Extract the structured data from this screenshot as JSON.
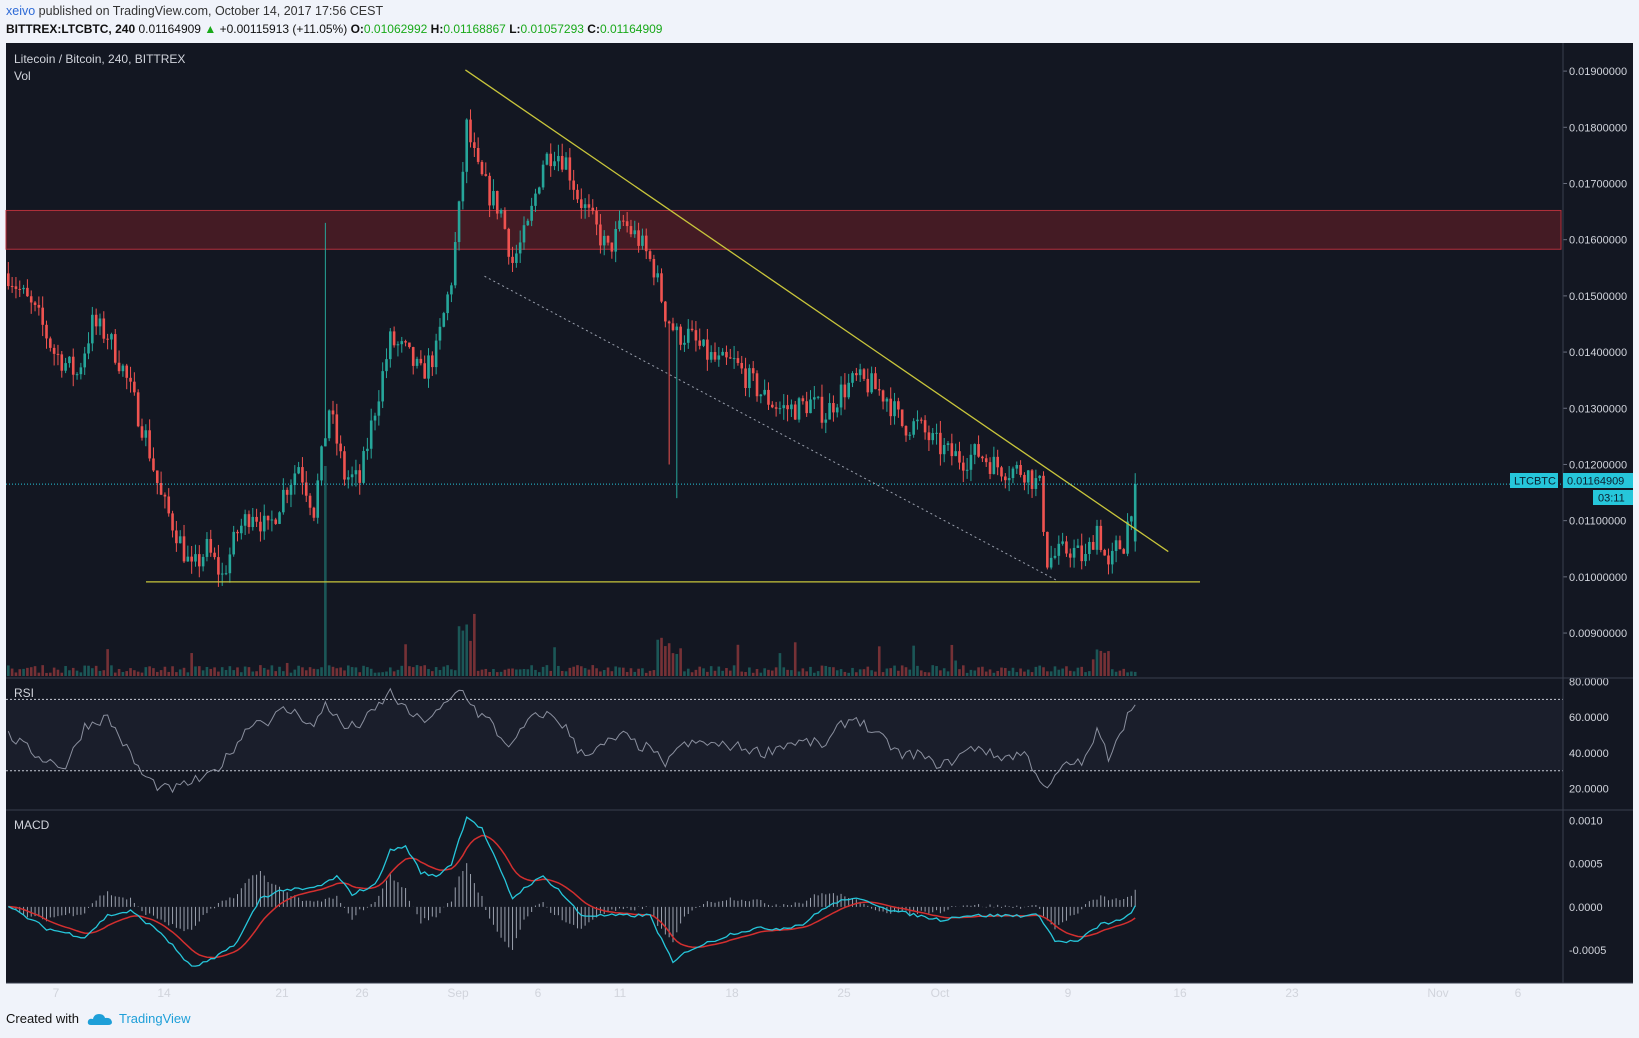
{
  "header": {
    "user": "xeivo",
    "published_text": "published on TradingView.com, October 14, 2017 17:56 CEST",
    "symbol": "BITTREX:LTCBTC, 240",
    "last": "0.01164909",
    "change": "+0.00115913 (+11.05%)",
    "o_label": "O:",
    "o_value": "0.01062992",
    "h_label": "H:",
    "h_value": "0.01168867",
    "l_label": "L:",
    "l_value": "0.01057293",
    "c_label": "C:",
    "c_value": "0.01164909"
  },
  "panes": {
    "main_title": "Litecoin / Bitcoin, 240, BITTREX",
    "vol_label": "Vol",
    "rsi_label": "RSI",
    "macd_label": "MACD"
  },
  "price_tag": {
    "symbol": "LTCBTC",
    "price": "0.01164909",
    "countdown": "03:11"
  },
  "footer": {
    "created_with": "Created with",
    "brand": "TradingView"
  },
  "colors": {
    "background": "#131722",
    "up": "#26a69a",
    "down": "#ef5350",
    "trendline": "#c8c53b",
    "zone": "#4a1c25",
    "rsi": "#8a8f9e",
    "macd_line": "#26c6da",
    "signal_line": "#d32f2f",
    "price_tag": "#26c6da"
  },
  "chart_data": [
    {
      "type": "candlestick",
      "title": "Litecoin / Bitcoin, 240, BITTREX",
      "x_tick_labels": [
        "7",
        "14",
        "21",
        "26",
        "Sep",
        "6",
        "11",
        "18",
        "25",
        "Oct",
        "9",
        "16",
        "23",
        "Nov",
        "6"
      ],
      "y_tick_labels": [
        "0.01900000",
        "0.01800000",
        "0.01700000",
        "0.01600000",
        "0.01500000",
        "0.01400000",
        "0.01300000",
        "0.01200000",
        "0.01100000",
        "0.01000000",
        "0.00900000"
      ],
      "ylim": [
        0.0082,
        0.0195
      ],
      "close_anchors": [
        [
          0,
          0.0154
        ],
        [
          3,
          0.0151
        ],
        [
          8,
          0.0146
        ],
        [
          12,
          0.014
        ],
        [
          18,
          0.0136
        ],
        [
          22,
          0.0145
        ],
        [
          26,
          0.0143
        ],
        [
          30,
          0.0137
        ],
        [
          36,
          0.0125
        ],
        [
          40,
          0.0114
        ],
        [
          44,
          0.0108
        ],
        [
          48,
          0.0101
        ],
        [
          52,
          0.0105
        ],
        [
          56,
          0.01
        ],
        [
          60,
          0.0108
        ],
        [
          64,
          0.0112
        ],
        [
          68,
          0.0108
        ],
        [
          72,
          0.0115
        ],
        [
          76,
          0.012
        ],
        [
          80,
          0.0112
        ],
        [
          84,
          0.013
        ],
        [
          88,
          0.0118
        ],
        [
          92,
          0.0117
        ],
        [
          96,
          0.013
        ],
        [
          100,
          0.0142
        ],
        [
          104,
          0.014
        ],
        [
          108,
          0.0136
        ],
        [
          112,
          0.014
        ],
        [
          116,
          0.0153
        ],
        [
          118,
          0.0165
        ],
        [
          120,
          0.018
        ],
        [
          123,
          0.0172
        ],
        [
          126,
          0.0168
        ],
        [
          129,
          0.0165
        ],
        [
          132,
          0.0156
        ],
        [
          136,
          0.0162
        ],
        [
          140,
          0.0174
        ],
        [
          143,
          0.0176
        ],
        [
          146,
          0.0174
        ],
        [
          149,
          0.0168
        ],
        [
          153,
          0.0163
        ],
        [
          157,
          0.0158
        ],
        [
          161,
          0.0163
        ],
        [
          165,
          0.016
        ],
        [
          169,
          0.0155
        ],
        [
          172,
          0.0147
        ],
        [
          175,
          0.0143
        ],
        [
          178,
          0.0143
        ],
        [
          182,
          0.014
        ],
        [
          186,
          0.0138
        ],
        [
          190,
          0.0138
        ],
        [
          194,
          0.0135
        ],
        [
          198,
          0.0132
        ],
        [
          202,
          0.013
        ],
        [
          206,
          0.013
        ],
        [
          210,
          0.0131
        ],
        [
          214,
          0.0129
        ],
        [
          218,
          0.0133
        ],
        [
          222,
          0.0135
        ],
        [
          226,
          0.0134
        ],
        [
          230,
          0.0132
        ],
        [
          234,
          0.0127
        ],
        [
          238,
          0.0127
        ],
        [
          242,
          0.0124
        ],
        [
          246,
          0.0122
        ],
        [
          250,
          0.0121
        ],
        [
          254,
          0.0122
        ],
        [
          258,
          0.012
        ],
        [
          262,
          0.0119
        ],
        [
          266,
          0.0119
        ],
        [
          270,
          0.0116
        ],
        [
          272,
          0.0103
        ],
        [
          275,
          0.0104
        ],
        [
          278,
          0.0105
        ],
        [
          282,
          0.0103
        ],
        [
          285,
          0.0109
        ],
        [
          288,
          0.0101
        ],
        [
          290,
          0.0105
        ],
        [
          292,
          0.0106
        ],
        [
          295,
          0.01165
        ]
      ],
      "spikes": [
        {
          "bar": 83,
          "high": 0.0163
        },
        {
          "bar": 173,
          "low": 0.012
        },
        {
          "bar": 175,
          "low": 0.0114
        }
      ],
      "annotations": {
        "resistance_zone": [
          0.01583,
          0.01652
        ],
        "support_line": 0.00991,
        "current_price": 0.01164909,
        "descending_trendline": [
          [
            0.01902,
            120
          ],
          [
            0.01045,
            304
          ]
        ],
        "lower_channel_dotted": [
          [
            0.01535,
            125
          ],
          [
            0.00993,
            275
          ]
        ]
      }
    },
    {
      "type": "line",
      "title": "RSI",
      "y_tick_labels": [
        "80.0000",
        "60.0000",
        "40.0000",
        "20.0000"
      ],
      "ylim": [
        8,
        82
      ],
      "bands": [
        70,
        30
      ],
      "anchors": [
        [
          0,
          50
        ],
        [
          8,
          38
        ],
        [
          15,
          32
        ],
        [
          20,
          55
        ],
        [
          26,
          60
        ],
        [
          30,
          46
        ],
        [
          35,
          28
        ],
        [
          40,
          20
        ],
        [
          44,
          20
        ],
        [
          48,
          24
        ],
        [
          52,
          26
        ],
        [
          56,
          34
        ],
        [
          60,
          46
        ],
        [
          64,
          58
        ],
        [
          68,
          58
        ],
        [
          72,
          64
        ],
        [
          76,
          62
        ],
        [
          80,
          54
        ],
        [
          83,
          68
        ],
        [
          88,
          54
        ],
        [
          92,
          56
        ],
        [
          96,
          64
        ],
        [
          100,
          74
        ],
        [
          104,
          64
        ],
        [
          108,
          58
        ],
        [
          112,
          62
        ],
        [
          116,
          70
        ],
        [
          118,
          76
        ],
        [
          120,
          72
        ],
        [
          123,
          62
        ],
        [
          126,
          58
        ],
        [
          129,
          48
        ],
        [
          132,
          44
        ],
        [
          136,
          58
        ],
        [
          140,
          62
        ],
        [
          143,
          60
        ],
        [
          146,
          54
        ],
        [
          149,
          42
        ],
        [
          153,
          40
        ],
        [
          157,
          46
        ],
        [
          161,
          50
        ],
        [
          165,
          44
        ],
        [
          169,
          42
        ],
        [
          172,
          30
        ],
        [
          174,
          42
        ],
        [
          177,
          44
        ],
        [
          182,
          46
        ],
        [
          186,
          44
        ],
        [
          190,
          44
        ],
        [
          194,
          42
        ],
        [
          198,
          40
        ],
        [
          202,
          44
        ],
        [
          206,
          46
        ],
        [
          210,
          46
        ],
        [
          214,
          44
        ],
        [
          218,
          56
        ],
        [
          222,
          60
        ],
        [
          226,
          52
        ],
        [
          230,
          46
        ],
        [
          234,
          38
        ],
        [
          238,
          40
        ],
        [
          242,
          34
        ],
        [
          246,
          34
        ],
        [
          250,
          40
        ],
        [
          254,
          44
        ],
        [
          258,
          38
        ],
        [
          262,
          38
        ],
        [
          266,
          40
        ],
        [
          270,
          26
        ],
        [
          272,
          18
        ],
        [
          275,
          30
        ],
        [
          278,
          34
        ],
        [
          282,
          36
        ],
        [
          285,
          52
        ],
        [
          288,
          38
        ],
        [
          290,
          48
        ],
        [
          292,
          56
        ],
        [
          295,
          70
        ]
      ]
    },
    {
      "type": "line",
      "title": "MACD",
      "y_tick_labels": [
        "0.0010",
        "0.0005",
        "0.0000",
        "-0.0005"
      ],
      "ylim": [
        -0.00088,
        0.00112
      ],
      "series": [
        {
          "name": "MACD",
          "anchors": [
            [
              0,
              0
            ],
            [
              10,
              -0.00025
            ],
            [
              20,
              -0.00035
            ],
            [
              26,
              -0.0001
            ],
            [
              32,
              -5e-05
            ],
            [
              40,
              -0.0003
            ],
            [
              48,
              -0.0007
            ],
            [
              54,
              -0.0006
            ],
            [
              60,
              -0.0004
            ],
            [
              66,
              0.0001
            ],
            [
              72,
              0.0002
            ],
            [
              78,
              0.0002
            ],
            [
              82,
              0.00025
            ],
            [
              86,
              0.00035
            ],
            [
              90,
              0.00015
            ],
            [
              96,
              0.00025
            ],
            [
              100,
              0.00065
            ],
            [
              104,
              0.0007
            ],
            [
              108,
              0.0004
            ],
            [
              112,
              0.00035
            ],
            [
              116,
              0.0005
            ],
            [
              120,
              0.00105
            ],
            [
              124,
              0.0009
            ],
            [
              128,
              0.0005
            ],
            [
              132,
              0.0001
            ],
            [
              136,
              0.00025
            ],
            [
              140,
              0.00035
            ],
            [
              144,
              0.0002
            ],
            [
              150,
              -0.0001
            ],
            [
              156,
              -0.0001
            ],
            [
              162,
              -0.0001
            ],
            [
              168,
              -0.0001
            ],
            [
              174,
              -0.00065
            ],
            [
              178,
              -0.0005
            ],
            [
              184,
              -0.0004
            ],
            [
              190,
              -0.0003
            ],
            [
              196,
              -0.00025
            ],
            [
              202,
              -0.00025
            ],
            [
              208,
              -0.0002
            ],
            [
              214,
              0.0
            ],
            [
              220,
              0.0001
            ],
            [
              226,
              5e-05
            ],
            [
              232,
              -5e-05
            ],
            [
              238,
              -0.0001
            ],
            [
              244,
              -0.00015
            ],
            [
              250,
              -0.0001
            ],
            [
              256,
              -0.0001
            ],
            [
              262,
              -0.0001
            ],
            [
              266,
              -0.0001
            ],
            [
              270,
              -0.0001
            ],
            [
              274,
              -0.0004
            ],
            [
              280,
              -0.0004
            ],
            [
              286,
              -0.0002
            ],
            [
              292,
              -0.00015
            ],
            [
              295,
              0.0
            ]
          ]
        }
      ]
    }
  ]
}
